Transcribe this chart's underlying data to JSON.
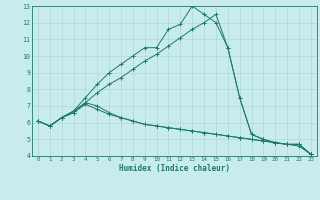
{
  "xlabel": "Humidex (Indice chaleur)",
  "bg_color": "#c8ecec",
  "grid_color": "#b0d8d8",
  "line_color": "#1a7a6e",
  "xlim": [
    -0.5,
    23.5
  ],
  "ylim": [
    4,
    13
  ],
  "xticks": [
    0,
    1,
    2,
    3,
    4,
    5,
    6,
    7,
    8,
    9,
    10,
    11,
    12,
    13,
    14,
    15,
    16,
    17,
    18,
    19,
    20,
    21,
    22,
    23
  ],
  "yticks": [
    4,
    5,
    6,
    7,
    8,
    9,
    10,
    11,
    12,
    13
  ],
  "series": [
    [
      6.1,
      5.8,
      6.3,
      6.6,
      7.2,
      7.0,
      6.6,
      6.3,
      6.1,
      5.9,
      5.8,
      5.7,
      5.6,
      5.5,
      5.4,
      5.3,
      5.2,
      5.1,
      5.0,
      4.9,
      4.8,
      4.7,
      4.6,
      4.1
    ],
    [
      6.1,
      5.8,
      6.3,
      6.7,
      7.5,
      8.3,
      9.0,
      9.5,
      10.0,
      10.5,
      10.5,
      11.6,
      11.9,
      13.0,
      12.5,
      12.0,
      10.5,
      7.5,
      5.3,
      5.0,
      4.8,
      4.7,
      4.7,
      4.1
    ],
    [
      6.1,
      5.8,
      6.3,
      6.7,
      7.2,
      7.8,
      8.3,
      8.7,
      9.2,
      9.7,
      10.1,
      10.6,
      11.1,
      11.6,
      12.0,
      12.5,
      10.5,
      7.5,
      5.3,
      5.0,
      4.8,
      4.7,
      4.7,
      4.1
    ],
    [
      6.1,
      5.8,
      6.3,
      6.6,
      7.1,
      6.8,
      6.5,
      6.3,
      6.1,
      5.9,
      5.8,
      5.7,
      5.6,
      5.5,
      5.4,
      5.3,
      5.2,
      5.1,
      5.0,
      4.9,
      4.8,
      4.7,
      4.7,
      4.1
    ]
  ]
}
